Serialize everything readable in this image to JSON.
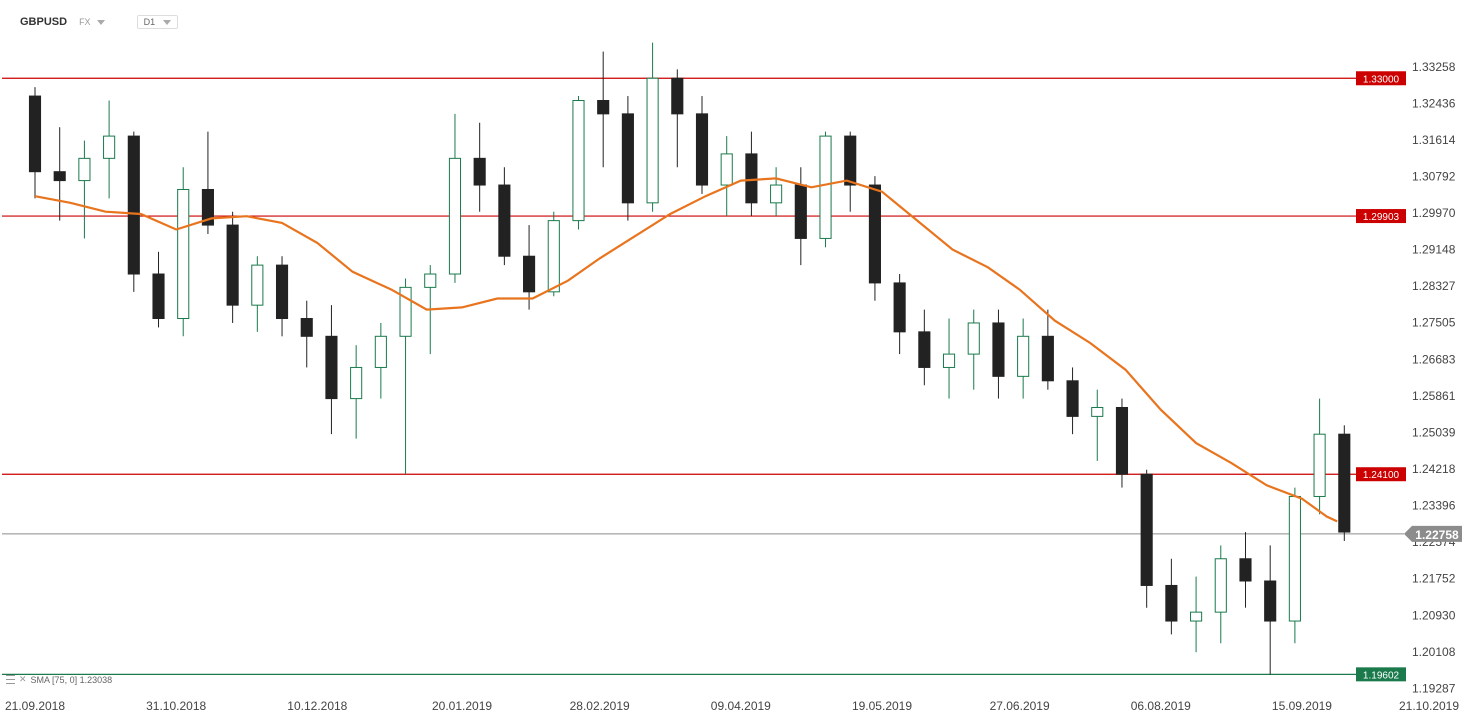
{
  "header": {
    "symbol": "GBPUSD",
    "market": "FX",
    "timeframe": "D1"
  },
  "indicator": {
    "label": "SMA [75, 0] 1.23038"
  },
  "chart_data": {
    "type": "candlestick",
    "title": "",
    "x_ticks": [
      "21.09.2018",
      "31.10.2018",
      "10.12.2018",
      "20.01.2019",
      "28.02.2019",
      "09.04.2019",
      "19.05.2019",
      "27.06.2019",
      "06.08.2019",
      "15.09.2019",
      "21.10.2019"
    ],
    "y_ticks": [
      1.33258,
      1.32436,
      1.31614,
      1.30792,
      1.2997,
      1.29148,
      1.28327,
      1.27505,
      1.26683,
      1.25861,
      1.25039,
      1.24218,
      1.23396,
      1.22574,
      1.21752,
      1.2093,
      1.20108,
      1.19287
    ],
    "y_range": [
      1.1925,
      1.3395
    ],
    "current_price": {
      "value": 1.22758,
      "label": "1.22758",
      "color": "#8c8c8c"
    },
    "horizontal_lines": [
      {
        "value": 1.33,
        "label": "1.33000",
        "color": "#cc0000"
      },
      {
        "value": 1.29903,
        "label": "1.29903",
        "color": "#cc0000"
      },
      {
        "value": 1.241,
        "label": "1.24100",
        "color": "#cc0000"
      },
      {
        "value": 1.19602,
        "label": "1.19602",
        "color": "#1a7a4c"
      }
    ],
    "candle_colors": {
      "up": "#1a7a4c",
      "down": "#222222"
    },
    "sma": {
      "period": 75,
      "color": "#e8741e",
      "last_value": 1.23038,
      "points": [
        [
          "21.09.2018",
          1.3035
        ],
        [
          "01.10.2018",
          1.302
        ],
        [
          "11.10.2018",
          1.3
        ],
        [
          "21.10.2018",
          1.2995
        ],
        [
          "31.10.2018",
          1.296
        ],
        [
          "10.11.2018",
          1.2985
        ],
        [
          "20.11.2018",
          1.299
        ],
        [
          "30.11.2018",
          1.2975
        ],
        [
          "10.12.2018",
          1.293
        ],
        [
          "20.12.2018",
          1.2865
        ],
        [
          "31.12.2018",
          1.2825
        ],
        [
          "10.01.2019",
          1.278
        ],
        [
          "20.01.2019",
          1.2785
        ],
        [
          "30.01.2019",
          1.2805
        ],
        [
          "09.02.2019",
          1.2805
        ],
        [
          "19.02.2019",
          1.2845
        ],
        [
          "28.02.2019",
          1.2895
        ],
        [
          "10.03.2019",
          1.2945
        ],
        [
          "20.03.2019",
          1.2995
        ],
        [
          "30.03.2019",
          1.3035
        ],
        [
          "09.04.2019",
          1.307
        ],
        [
          "19.04.2019",
          1.3075
        ],
        [
          "29.04.2019",
          1.3055
        ],
        [
          "09.05.2019",
          1.307
        ],
        [
          "19.05.2019",
          1.3045
        ],
        [
          "29.05.2019",
          1.298
        ],
        [
          "08.06.2019",
          1.2915
        ],
        [
          "18.06.2019",
          1.2875
        ],
        [
          "27.06.2019",
          1.2825
        ],
        [
          "07.07.2019",
          1.2755
        ],
        [
          "17.07.2019",
          1.2705
        ],
        [
          "27.07.2019",
          1.2645
        ],
        [
          "06.08.2019",
          1.2555
        ],
        [
          "16.08.2019",
          1.248
        ],
        [
          "26.08.2019",
          1.2435
        ],
        [
          "05.09.2019",
          1.2385
        ],
        [
          "15.09.2019",
          1.2355
        ],
        [
          "22.09.2019",
          1.2315
        ],
        [
          "25.09.2019",
          1.2304
        ]
      ]
    },
    "candles_ohlc": [
      [
        "21.09.2018",
        1.326,
        1.328,
        1.303,
        1.309
      ],
      [
        "28.09.2018",
        1.309,
        1.319,
        1.298,
        1.307
      ],
      [
        "05.10.2018",
        1.307,
        1.316,
        1.294,
        1.312
      ],
      [
        "12.10.2018",
        1.312,
        1.325,
        1.303,
        1.317
      ],
      [
        "19.10.2018",
        1.317,
        1.318,
        1.282,
        1.286
      ],
      [
        "26.10.2018",
        1.286,
        1.291,
        1.274,
        1.276
      ],
      [
        "02.11.2018",
        1.276,
        1.31,
        1.272,
        1.305
      ],
      [
        "09.11.2018",
        1.305,
        1.318,
        1.295,
        1.297
      ],
      [
        "16.11.2018",
        1.297,
        1.3,
        1.275,
        1.279
      ],
      [
        "23.11.2018",
        1.279,
        1.29,
        1.273,
        1.288
      ],
      [
        "30.11.2018",
        1.288,
        1.29,
        1.272,
        1.276
      ],
      [
        "07.12.2018",
        1.276,
        1.28,
        1.265,
        1.272
      ],
      [
        "14.12.2018",
        1.272,
        1.279,
        1.25,
        1.258
      ],
      [
        "21.12.2018",
        1.258,
        1.27,
        1.249,
        1.265
      ],
      [
        "28.12.2018",
        1.265,
        1.275,
        1.258,
        1.272
      ],
      [
        "04.01.2019",
        1.272,
        1.285,
        1.241,
        1.283
      ],
      [
        "11.01.2019",
        1.283,
        1.288,
        1.268,
        1.286
      ],
      [
        "18.01.2019",
        1.286,
        1.322,
        1.284,
        1.312
      ],
      [
        "25.01.2019",
        1.312,
        1.32,
        1.3,
        1.306
      ],
      [
        "01.02.2019",
        1.306,
        1.31,
        1.288,
        1.29
      ],
      [
        "08.02.2019",
        1.29,
        1.297,
        1.278,
        1.282
      ],
      [
        "15.02.2019",
        1.282,
        1.3,
        1.281,
        1.298
      ],
      [
        "22.02.2019",
        1.298,
        1.326,
        1.296,
        1.325
      ],
      [
        "01.03.2019",
        1.325,
        1.336,
        1.31,
        1.322
      ],
      [
        "08.03.2019",
        1.322,
        1.326,
        1.298,
        1.302
      ],
      [
        "15.03.2019",
        1.302,
        1.338,
        1.3,
        1.33
      ],
      [
        "22.03.2019",
        1.33,
        1.332,
        1.31,
        1.322
      ],
      [
        "29.03.2019",
        1.322,
        1.326,
        1.304,
        1.306
      ],
      [
        "05.04.2019",
        1.306,
        1.317,
        1.299,
        1.313
      ],
      [
        "12.04.2019",
        1.313,
        1.318,
        1.299,
        1.302
      ],
      [
        "19.04.2019",
        1.302,
        1.31,
        1.299,
        1.306
      ],
      [
        "26.04.2019",
        1.306,
        1.31,
        1.288,
        1.294
      ],
      [
        "03.05.2019",
        1.294,
        1.318,
        1.292,
        1.317
      ],
      [
        "10.05.2019",
        1.317,
        1.318,
        1.3,
        1.306
      ],
      [
        "17.05.2019",
        1.306,
        1.308,
        1.28,
        1.284
      ],
      [
        "24.05.2019",
        1.284,
        1.286,
        1.268,
        1.273
      ],
      [
        "31.05.2019",
        1.273,
        1.278,
        1.261,
        1.265
      ],
      [
        "07.06.2019",
        1.265,
        1.276,
        1.258,
        1.268
      ],
      [
        "14.06.2019",
        1.268,
        1.278,
        1.26,
        1.275
      ],
      [
        "21.06.2019",
        1.275,
        1.278,
        1.258,
        1.263
      ],
      [
        "28.06.2019",
        1.263,
        1.276,
        1.258,
        1.272
      ],
      [
        "05.07.2019",
        1.272,
        1.278,
        1.26,
        1.262
      ],
      [
        "12.07.2019",
        1.262,
        1.265,
        1.25,
        1.254
      ],
      [
        "19.07.2019",
        1.254,
        1.26,
        1.244,
        1.256
      ],
      [
        "26.07.2019",
        1.256,
        1.258,
        1.238,
        1.241
      ],
      [
        "02.08.2019",
        1.241,
        1.242,
        1.211,
        1.216
      ],
      [
        "09.08.2019",
        1.216,
        1.222,
        1.205,
        1.208
      ],
      [
        "16.08.2019",
        1.208,
        1.218,
        1.201,
        1.21
      ],
      [
        "23.08.2019",
        1.21,
        1.225,
        1.203,
        1.222
      ],
      [
        "30.08.2019",
        1.222,
        1.228,
        1.211,
        1.217
      ],
      [
        "06.09.2019",
        1.217,
        1.225,
        1.196,
        1.208
      ],
      [
        "13.09.2019",
        1.208,
        1.238,
        1.203,
        1.236
      ],
      [
        "20.09.2019",
        1.236,
        1.258,
        1.232,
        1.25
      ],
      [
        "27.09.2019",
        1.25,
        1.252,
        1.226,
        1.228
      ]
    ]
  }
}
